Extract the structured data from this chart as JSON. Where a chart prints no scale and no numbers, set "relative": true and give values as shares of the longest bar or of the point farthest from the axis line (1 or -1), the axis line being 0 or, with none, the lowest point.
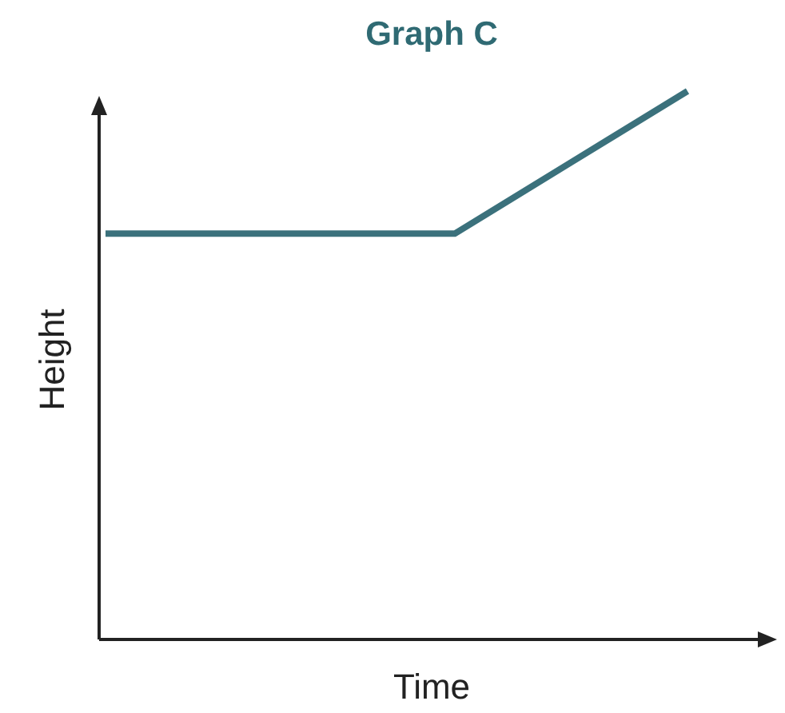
{
  "chart_data": {
    "type": "line",
    "title": "Graph C",
    "xlabel": "Time",
    "ylabel": "Height",
    "relative": true,
    "categories": [
      null,
      null,
      null,
      null,
      null,
      null
    ],
    "series": [
      {
        "color": "#3b717c",
        "values": [
          0.74,
          0.74,
          0.74,
          0.74,
          0.87,
          1
        ]
      }
    ],
    "line_style": "solid"
  }
}
